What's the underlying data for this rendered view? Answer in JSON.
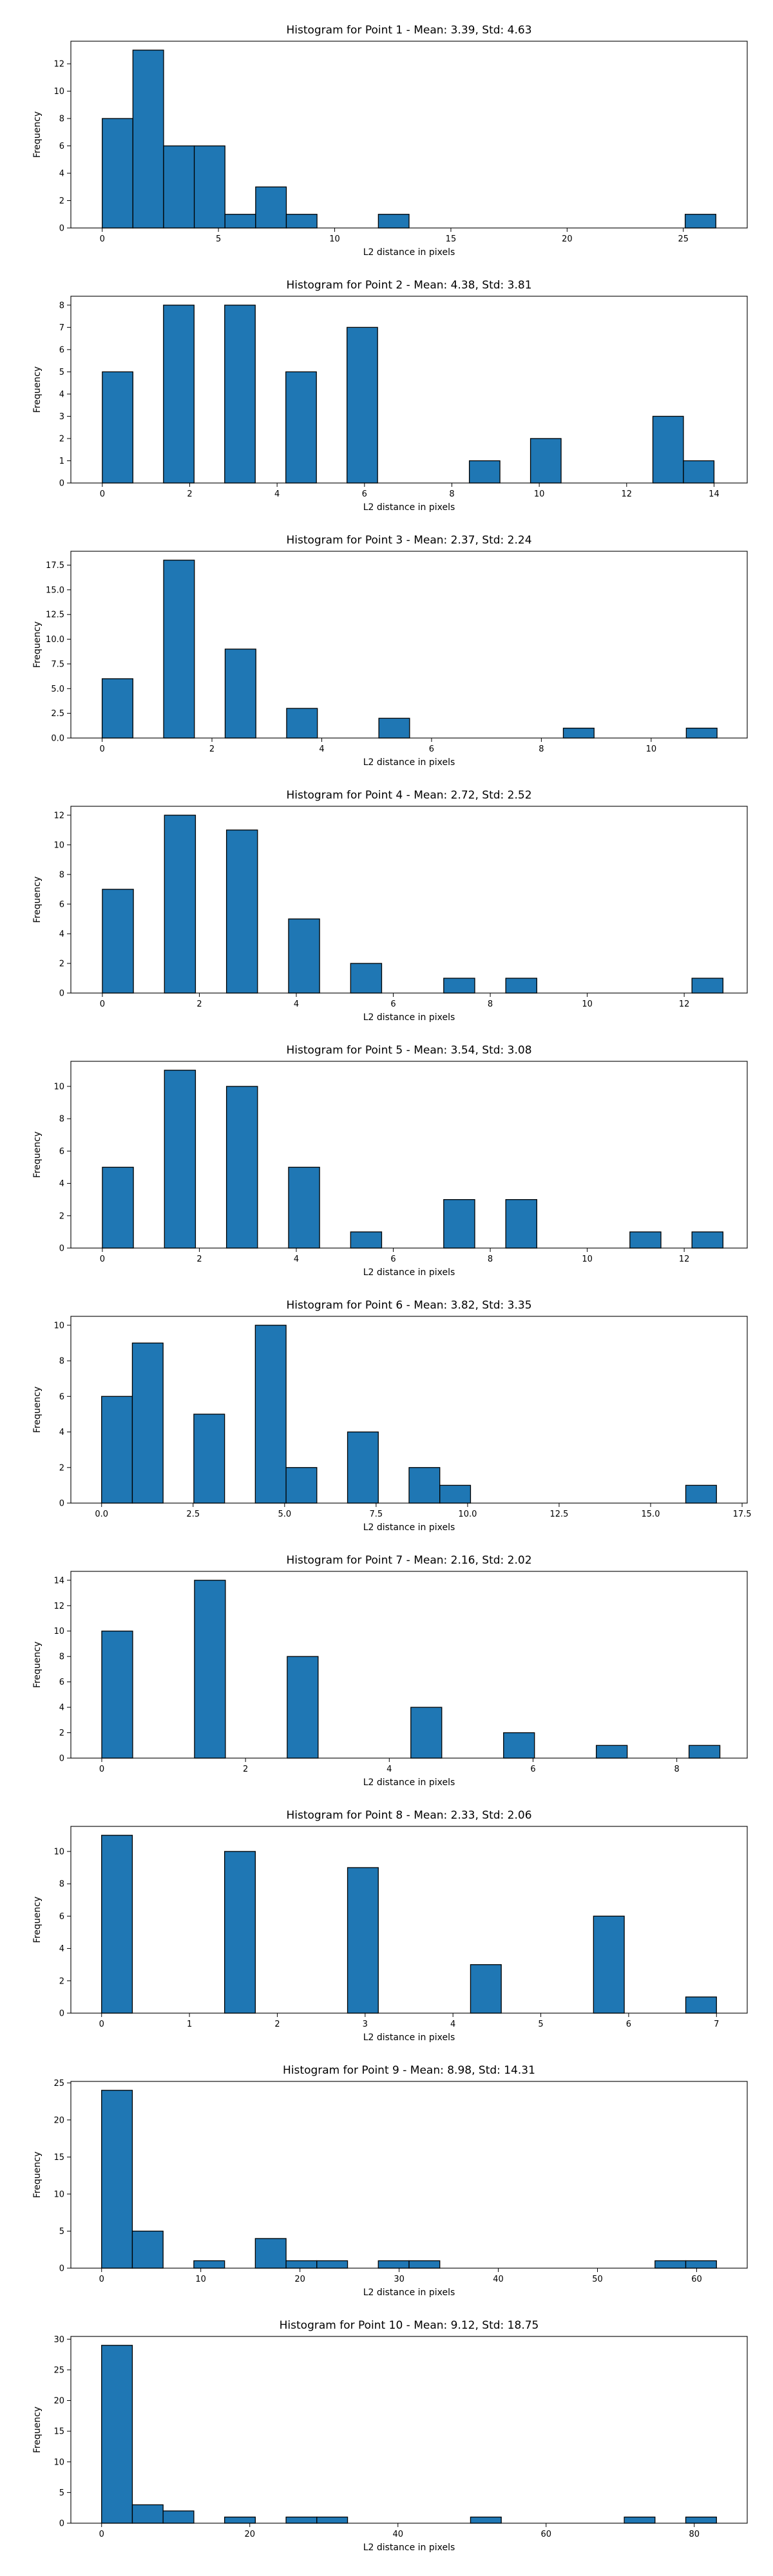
{
  "figure": {
    "background": "#ffffff"
  },
  "style": {
    "bar_fill": "#1f77b4",
    "bar_edge": "#000000",
    "axis_color": "#000000"
  },
  "chart_data": [
    {
      "type": "bar",
      "title": "Histogram for Point 1 - Mean: 3.39, Std: 4.63",
      "xlabel": "L2 distance in pixels",
      "ylabel": "Frequency",
      "xlim": [
        -1.35,
        27.75
      ],
      "ylim": [
        0,
        13.65
      ],
      "xticks": [
        0,
        5,
        10,
        15,
        20,
        25
      ],
      "xtick_labels": [
        "0",
        "5",
        "10",
        "15",
        "20",
        "25"
      ],
      "yticks": [
        0,
        2,
        4,
        6,
        8,
        10,
        12
      ],
      "ytick_labels": [
        "0",
        "2",
        "4",
        "6",
        "8",
        "10",
        "12"
      ],
      "bins": [
        [
          0,
          1.32
        ],
        [
          1.32,
          2.64
        ],
        [
          2.64,
          3.96
        ],
        [
          3.96,
          5.28
        ],
        [
          5.28,
          6.6
        ],
        [
          6.6,
          7.92
        ],
        [
          7.92,
          9.24
        ],
        [
          11.88,
          13.2
        ],
        [
          25.08,
          26.4
        ]
      ],
      "values": [
        8,
        13,
        6,
        6,
        1,
        3,
        1,
        1,
        1
      ],
      "grid": false,
      "legend": "none"
    },
    {
      "type": "bar",
      "title": "Histogram for Point 2 - Mean: 4.38, Std: 3.81",
      "xlabel": "L2 distance in pixels",
      "ylabel": "Frequency",
      "xlim": [
        -0.72,
        14.76
      ],
      "ylim": [
        0,
        8.4
      ],
      "xticks": [
        0,
        2,
        4,
        6,
        8,
        10,
        12,
        14
      ],
      "xtick_labels": [
        "0",
        "2",
        "4",
        "6",
        "8",
        "10",
        "12",
        "14"
      ],
      "yticks": [
        0,
        1,
        2,
        3,
        4,
        5,
        6,
        7,
        8
      ],
      "ytick_labels": [
        "0",
        "1",
        "2",
        "3",
        "4",
        "5",
        "6",
        "7",
        "8"
      ],
      "bins": [
        [
          0,
          0.7
        ],
        [
          1.4,
          2.1
        ],
        [
          2.8,
          3.5
        ],
        [
          4.2,
          4.9
        ],
        [
          5.6,
          6.3
        ],
        [
          8.4,
          9.1
        ],
        [
          9.8,
          10.5
        ],
        [
          12.6,
          13.3
        ],
        [
          13.3,
          14
        ]
      ],
      "values": [
        5,
        8,
        8,
        5,
        7,
        1,
        2,
        3,
        1
      ],
      "grid": false,
      "legend": "none"
    },
    {
      "type": "bar",
      "title": "Histogram for Point 3 - Mean: 2.37, Std: 2.24",
      "xlabel": "L2 distance in pixels",
      "ylabel": "Frequency",
      "xlim": [
        -0.57,
        11.75
      ],
      "ylim": [
        0,
        18.9
      ],
      "xticks": [
        0,
        2,
        4,
        6,
        8,
        10
      ],
      "xtick_labels": [
        "0",
        "2",
        "4",
        "6",
        "8",
        "10"
      ],
      "yticks": [
        0,
        2.5,
        5,
        7.5,
        10,
        12.5,
        15,
        17.5
      ],
      "ytick_labels": [
        "0.0",
        "2.5",
        "5.0",
        "7.5",
        "10.0",
        "12.5",
        "15.0",
        "17.5"
      ],
      "bins": [
        [
          0,
          0.56
        ],
        [
          1.12,
          1.68
        ],
        [
          2.24,
          2.8
        ],
        [
          3.36,
          3.92
        ],
        [
          5.04,
          5.6
        ],
        [
          8.4,
          8.96
        ],
        [
          10.64,
          11.2
        ]
      ],
      "values": [
        6,
        18,
        9,
        3,
        2,
        1,
        1
      ],
      "grid": false,
      "legend": "none"
    },
    {
      "type": "bar",
      "title": "Histogram for Point 4 - Mean: 2.72, Std: 2.52",
      "xlabel": "L2 distance in pixels",
      "ylabel": "Frequency",
      "xlim": [
        -0.65,
        13.3
      ],
      "ylim": [
        0,
        12.6
      ],
      "xticks": [
        0,
        2,
        4,
        6,
        8,
        10,
        12
      ],
      "xtick_labels": [
        "0",
        "2",
        "4",
        "6",
        "8",
        "10",
        "12"
      ],
      "yticks": [
        0,
        2,
        4,
        6,
        8,
        10,
        12
      ],
      "ytick_labels": [
        "0",
        "2",
        "4",
        "6",
        "8",
        "10",
        "12"
      ],
      "bins": [
        [
          0,
          0.64
        ],
        [
          1.28,
          1.92
        ],
        [
          2.56,
          3.2
        ],
        [
          3.84,
          4.48
        ],
        [
          5.12,
          5.76
        ],
        [
          7.04,
          7.68
        ],
        [
          8.32,
          8.96
        ],
        [
          12.16,
          12.8
        ]
      ],
      "values": [
        7,
        12,
        11,
        5,
        2,
        1,
        1,
        1
      ],
      "grid": false,
      "legend": "none"
    },
    {
      "type": "bar",
      "title": "Histogram for Point 5 - Mean: 3.54, Std: 3.08",
      "xlabel": "L2 distance in pixels",
      "ylabel": "Frequency",
      "xlim": [
        -0.65,
        13.3
      ],
      "ylim": [
        0,
        11.55
      ],
      "xticks": [
        0,
        2,
        4,
        6,
        8,
        10,
        12
      ],
      "xtick_labels": [
        "0",
        "2",
        "4",
        "6",
        "8",
        "10",
        "12"
      ],
      "yticks": [
        0,
        2,
        4,
        6,
        8,
        10
      ],
      "ytick_labels": [
        "0",
        "2",
        "4",
        "6",
        "8",
        "10"
      ],
      "bins": [
        [
          0,
          0.64
        ],
        [
          1.28,
          1.92
        ],
        [
          2.56,
          3.2
        ],
        [
          3.84,
          4.48
        ],
        [
          5.12,
          5.76
        ],
        [
          7.04,
          7.68
        ],
        [
          8.32,
          8.96
        ],
        [
          10.88,
          11.52
        ],
        [
          12.16,
          12.8
        ]
      ],
      "values": [
        5,
        11,
        10,
        5,
        1,
        3,
        3,
        1,
        1
      ],
      "grid": false,
      "legend": "none"
    },
    {
      "type": "bar",
      "title": "Histogram for Point 6 - Mean: 3.82, Std: 3.35",
      "xlabel": "L2 distance in pixels",
      "ylabel": "Frequency",
      "xlim": [
        -0.84,
        17.64
      ],
      "ylim": [
        0,
        10.5
      ],
      "xticks": [
        0,
        2.5,
        5,
        7.5,
        10,
        12.5,
        15,
        17.5
      ],
      "xtick_labels": [
        "0.0",
        "2.5",
        "5.0",
        "7.5",
        "10.0",
        "12.5",
        "15.0",
        "17.5"
      ],
      "yticks": [
        0,
        2,
        4,
        6,
        8,
        10
      ],
      "ytick_labels": [
        "0",
        "2",
        "4",
        "6",
        "8",
        "10"
      ],
      "bins": [
        [
          0,
          0.84
        ],
        [
          0.84,
          1.68
        ],
        [
          2.52,
          3.36
        ],
        [
          4.2,
          5.04
        ],
        [
          5.04,
          5.88
        ],
        [
          6.72,
          7.56
        ],
        [
          8.4,
          9.24
        ],
        [
          9.24,
          10.08
        ],
        [
          15.96,
          16.8
        ]
      ],
      "values": [
        6,
        9,
        5,
        10,
        2,
        4,
        2,
        1,
        1
      ],
      "grid": false,
      "legend": "none"
    },
    {
      "type": "bar",
      "title": "Histogram for Point 7 - Mean: 2.16, Std: 2.02",
      "xlabel": "L2 distance in pixels",
      "ylabel": "Frequency",
      "xlim": [
        -0.43,
        8.98
      ],
      "ylim": [
        0,
        14.7
      ],
      "xticks": [
        0,
        2,
        4,
        6,
        8
      ],
      "xtick_labels": [
        "0",
        "2",
        "4",
        "6",
        "8"
      ],
      "yticks": [
        0,
        2,
        4,
        6,
        8,
        10,
        12,
        14
      ],
      "ytick_labels": [
        "0",
        "2",
        "4",
        "6",
        "8",
        "10",
        "12",
        "14"
      ],
      "bins": [
        [
          0,
          0.43
        ],
        [
          1.29,
          1.72
        ],
        [
          2.58,
          3.01
        ],
        [
          4.3,
          4.73
        ],
        [
          5.59,
          6.02
        ],
        [
          6.88,
          7.31
        ],
        [
          8.17,
          8.6
        ]
      ],
      "values": [
        10,
        14,
        8,
        4,
        2,
        1,
        1
      ],
      "grid": false,
      "legend": "none"
    },
    {
      "type": "bar",
      "title": "Histogram for Point 8 - Mean: 2.33, Std: 2.06",
      "xlabel": "L2 distance in pixels",
      "ylabel": "Frequency",
      "xlim": [
        -0.35,
        7.35
      ],
      "ylim": [
        0,
        11.55
      ],
      "xticks": [
        0,
        1,
        2,
        3,
        4,
        5,
        6,
        7
      ],
      "xtick_labels": [
        "0",
        "1",
        "2",
        "3",
        "4",
        "5",
        "6",
        "7"
      ],
      "yticks": [
        0,
        2,
        4,
        6,
        8,
        10
      ],
      "ytick_labels": [
        "0",
        "2",
        "4",
        "6",
        "8",
        "10"
      ],
      "bins": [
        [
          0,
          0.35
        ],
        [
          1.4,
          1.75
        ],
        [
          2.8,
          3.15
        ],
        [
          4.2,
          4.55
        ],
        [
          5.6,
          5.95
        ],
        [
          6.65,
          7
        ]
      ],
      "values": [
        11,
        10,
        9,
        3,
        6,
        1
      ],
      "grid": false,
      "legend": "none"
    },
    {
      "type": "bar",
      "title": "Histogram for Point 9 - Mean: 8.98, Std: 14.31",
      "xlabel": "L2 distance in pixels",
      "ylabel": "Frequency",
      "xlim": [
        -3.1,
        65.1
      ],
      "ylim": [
        0,
        25.2
      ],
      "xticks": [
        0,
        10,
        20,
        30,
        40,
        50,
        60
      ],
      "xtick_labels": [
        "0",
        "10",
        "20",
        "30",
        "40",
        "50",
        "60"
      ],
      "yticks": [
        0,
        5,
        10,
        15,
        20,
        25
      ],
      "ytick_labels": [
        "0",
        "5",
        "10",
        "15",
        "20",
        "25"
      ],
      "bins": [
        [
          0,
          3.1
        ],
        [
          3.1,
          6.2
        ],
        [
          9.3,
          12.4
        ],
        [
          15.5,
          18.6
        ],
        [
          18.6,
          21.7
        ],
        [
          21.7,
          24.8
        ],
        [
          27.9,
          31
        ],
        [
          31,
          34.1
        ],
        [
          55.8,
          58.9
        ],
        [
          58.9,
          62
        ]
      ],
      "values": [
        24,
        5,
        1,
        4,
        1,
        1,
        1,
        1,
        1,
        1
      ],
      "grid": false,
      "legend": "none"
    },
    {
      "type": "bar",
      "title": "Histogram for Point 10 - Mean: 9.12, Std: 18.75",
      "xlabel": "L2 distance in pixels",
      "ylabel": "Frequency",
      "xlim": [
        -4.15,
        87.15
      ],
      "ylim": [
        0,
        30.45
      ],
      "xticks": [
        0,
        20,
        40,
        60,
        80
      ],
      "xtick_labels": [
        "0",
        "20",
        "40",
        "60",
        "80"
      ],
      "yticks": [
        0,
        5,
        10,
        15,
        20,
        25,
        30
      ],
      "ytick_labels": [
        "0",
        "5",
        "10",
        "15",
        "20",
        "25",
        "30"
      ],
      "bins": [
        [
          0,
          4.15
        ],
        [
          4.15,
          8.3
        ],
        [
          8.3,
          12.45
        ],
        [
          16.6,
          20.75
        ],
        [
          24.9,
          29.05
        ],
        [
          29.05,
          33.2
        ],
        [
          49.8,
          53.95
        ],
        [
          70.55,
          74.7
        ],
        [
          78.85,
          83
        ]
      ],
      "values": [
        29,
        3,
        2,
        1,
        1,
        1,
        1,
        1,
        1
      ],
      "grid": false,
      "legend": "none"
    }
  ]
}
